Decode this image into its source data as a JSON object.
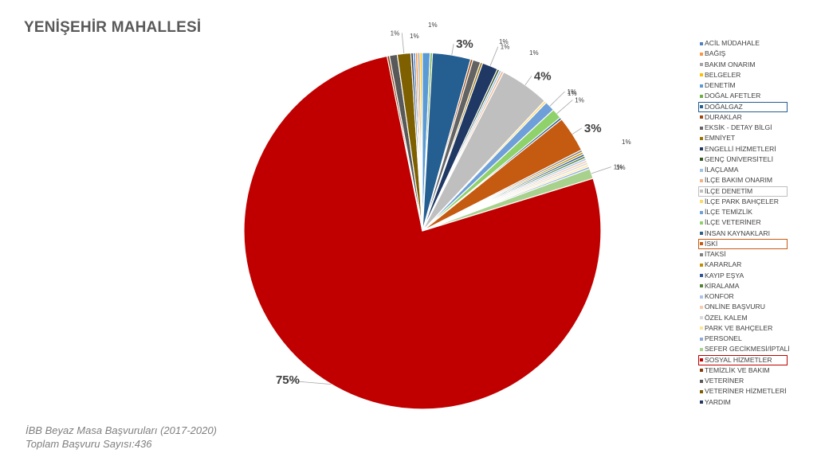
{
  "title": "YENİŞEHİR MAHALLESİ",
  "footer": {
    "line1": "İBB Beyaz Masa Başvuruları (2017-2020)",
    "line2": "Toplam Başvuru Sayısı:436"
  },
  "chart_data": {
    "type": "pie",
    "title": "YENİŞEHİR MAHALLESİ",
    "legend_position": "right",
    "slices": [
      {
        "name": "ACİL MÜDAHALE",
        "value": 0.2,
        "color": "#4f81bd"
      },
      {
        "name": "BAĞIŞ",
        "value": 0.2,
        "color": "#f79646"
      },
      {
        "name": "BAKIM ONARIM",
        "value": 0.2,
        "color": "#a5a5a5"
      },
      {
        "name": "BELGELER",
        "value": 0.2,
        "color": "#ffc000"
      },
      {
        "name": "DENETİM",
        "value": 0.7,
        "color": "#5b9bd5"
      },
      {
        "name": "DOĞAL AFETLER",
        "value": 0.2,
        "color": "#70ad47"
      },
      {
        "name": "DOĞALGAZ",
        "value": 3.4,
        "color": "#255e91",
        "label": "3%",
        "highlight": "#255e91"
      },
      {
        "name": "DURAKLAR",
        "value": 0.2,
        "color": "#9e480e"
      },
      {
        "name": "EKSİK - DETAY BİLGİ",
        "value": 0.7,
        "color": "#636363"
      },
      {
        "name": "EMNİYET",
        "value": 0.2,
        "color": "#997300"
      },
      {
        "name": "ENGELLİ HİZMETLERİ",
        "value": 1.4,
        "color": "#1f3864",
        "label": "1%"
      },
      {
        "name": "GENÇ ÜNİVERSİTELİ",
        "value": 0.2,
        "color": "#375623"
      },
      {
        "name": "İLAÇLAMA",
        "value": 0.2,
        "color": "#9dc3e6"
      },
      {
        "name": "İLÇE BAKIM ONARIM",
        "value": 0.2,
        "color": "#f4b183"
      },
      {
        "name": "İLÇE DENETİM",
        "value": 4.4,
        "color": "#bfbfbf",
        "label": "4%",
        "highlight": "#bfbfbf"
      },
      {
        "name": "İLÇE PARK BAHÇELER",
        "value": 0.2,
        "color": "#ffd966"
      },
      {
        "name": "İLÇE TEMİZLİK",
        "value": 0.9,
        "color": "#6f9fd8",
        "label": "1%"
      },
      {
        "name": "İLÇE VETERİNER",
        "value": 0.9,
        "color": "#8fd16a",
        "label": "1%"
      },
      {
        "name": "İNSAN KAYNAKLARI",
        "value": 0.2,
        "color": "#2e5f8a"
      },
      {
        "name": "İSKİ",
        "value": 3.2,
        "color": "#c55a11",
        "label": "3%",
        "highlight": "#c55a11"
      },
      {
        "name": "İTAKSİ",
        "value": 0.2,
        "color": "#7f7f7f"
      },
      {
        "name": "KARARLAR",
        "value": 0.2,
        "color": "#bf9000"
      },
      {
        "name": "KAYIP EŞYA",
        "value": 0.2,
        "color": "#2f5597"
      },
      {
        "name": "KİRALAMA",
        "value": 0.2,
        "color": "#548235"
      },
      {
        "name": "KONFOR",
        "value": 0.2,
        "color": "#a9c4eb"
      },
      {
        "name": "ONLİNE BAŞVURU",
        "value": 0.2,
        "color": "#f8cbad"
      },
      {
        "name": "ÖZEL KALEM",
        "value": 0.2,
        "color": "#d9d9d9"
      },
      {
        "name": "PARK VE BAHÇELER",
        "value": 0.2,
        "color": "#ffe699"
      },
      {
        "name": "PERSONEL",
        "value": 0.2,
        "color": "#8eaadb"
      },
      {
        "name": "SEFER GECİKMESİ/İPTALİ",
        "value": 0.9,
        "color": "#a9d18e",
        "label": "1%"
      },
      {
        "name": "SOSYAL HİZMETLER",
        "value": 75.2,
        "color": "#c00000",
        "label": "75%",
        "highlight": "#c00000"
      },
      {
        "name": "TEMİZLİK VE BAKIM",
        "value": 0.2,
        "color": "#843c0c"
      },
      {
        "name": "VETERİNER",
        "value": 0.7,
        "color": "#595959"
      },
      {
        "name": "VETERİNER HİZMETLERİ",
        "value": 1.2,
        "color": "#7f6000",
        "label": "1%"
      },
      {
        "name": "YARDIM",
        "value": 0.2,
        "color": "#203864"
      }
    ],
    "outer_labels": [
      {
        "text": "1%"
      },
      {
        "text": "1%"
      },
      {
        "text": "1%"
      },
      {
        "text": "1%"
      },
      {
        "text": "1%"
      },
      {
        "text": "1%"
      },
      {
        "text": "1%"
      }
    ]
  }
}
